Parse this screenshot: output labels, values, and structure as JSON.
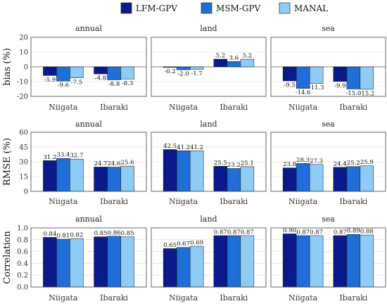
{
  "legend": [
    {
      "name": "LFM-GPV",
      "color": "#0a1a8c"
    },
    {
      "name": "MSM-GPV",
      "color": "#1f6fd6"
    },
    {
      "name": "MANAL",
      "color": "#8ecbf5"
    }
  ],
  "chart_data": [
    {
      "type": "bar",
      "metric": "bias",
      "ylabel": "bias (%)",
      "ylim": [
        -20,
        20
      ],
      "yticks": [
        -20,
        -10,
        0,
        10,
        20
      ],
      "grid": true,
      "label_decimals": 1,
      "panels": [
        {
          "title": "annual",
          "categories": [
            "Niigata",
            "Ibaraki"
          ],
          "series": [
            {
              "name": "LFM-GPV",
              "values": [
                -5.9,
                -4.8
              ]
            },
            {
              "name": "MSM-GPV",
              "values": [
                -9.6,
                -8.8
              ]
            },
            {
              "name": "MANAL",
              "values": [
                -7.5,
                -8.3
              ]
            }
          ]
        },
        {
          "title": "land",
          "categories": [
            "Niigata",
            "Ibaraki"
          ],
          "series": [
            {
              "name": "LFM-GPV",
              "values": [
                -0.2,
                5.2
              ]
            },
            {
              "name": "MSM-GPV",
              "values": [
                -2.0,
                3.6
              ]
            },
            {
              "name": "MANAL",
              "values": [
                -1.7,
                5.2
              ]
            }
          ]
        },
        {
          "title": "sea",
          "categories": [
            "Niigata",
            "Ibaraki"
          ],
          "series": [
            {
              "name": "LFM-GPV",
              "values": [
                -9.5,
                -9.9
              ]
            },
            {
              "name": "MSM-GPV",
              "values": [
                -14.6,
                -15.0
              ]
            },
            {
              "name": "MANAL",
              "values": [
                -11.3,
                -15.2
              ]
            }
          ]
        }
      ]
    },
    {
      "type": "bar",
      "metric": "RMSE",
      "ylabel": "RMSE (%)",
      "ylim": [
        0,
        60
      ],
      "yticks": [
        0,
        15,
        30,
        45,
        60
      ],
      "grid": true,
      "label_decimals": 1,
      "panels": [
        {
          "title": "annual",
          "categories": [
            "Niigata",
            "Ibaraki"
          ],
          "series": [
            {
              "name": "LFM-GPV",
              "values": [
                31.2,
                24.7
              ]
            },
            {
              "name": "MSM-GPV",
              "values": [
                33.4,
                24.6
              ]
            },
            {
              "name": "MANAL",
              "values": [
                32.7,
                25.6
              ]
            }
          ]
        },
        {
          "title": "land",
          "categories": [
            "Niigata",
            "Ibaraki"
          ],
          "series": [
            {
              "name": "LFM-GPV",
              "values": [
                42.5,
                25.5
              ]
            },
            {
              "name": "MSM-GPV",
              "values": [
                41.2,
                23.2
              ]
            },
            {
              "name": "MANAL",
              "values": [
                41.2,
                25.1
              ]
            }
          ]
        },
        {
          "title": "sea",
          "categories": [
            "Niigata",
            "Ibaraki"
          ],
          "series": [
            {
              "name": "LFM-GPV",
              "values": [
                23.8,
                24.4
              ]
            },
            {
              "name": "MSM-GPV",
              "values": [
                28.3,
                25.2
              ]
            },
            {
              "name": "MANAL",
              "values": [
                27.3,
                25.9
              ]
            }
          ]
        }
      ]
    },
    {
      "type": "bar",
      "metric": "Correlation",
      "ylabel": "Correlation",
      "ylim": [
        0,
        1.0
      ],
      "yticks": [
        0.0,
        0.2,
        0.4,
        0.6,
        0.8,
        1.0
      ],
      "grid": true,
      "label_decimals": 2,
      "panels": [
        {
          "title": "annual",
          "categories": [
            "Niigata",
            "Ibaraki"
          ],
          "series": [
            {
              "name": "LFM-GPV",
              "values": [
                0.84,
                0.85
              ]
            },
            {
              "name": "MSM-GPV",
              "values": [
                0.81,
                0.86
              ]
            },
            {
              "name": "MANAL",
              "values": [
                0.82,
                0.85
              ]
            }
          ]
        },
        {
          "title": "land",
          "categories": [
            "Niigata",
            "Ibaraki"
          ],
          "series": [
            {
              "name": "LFM-GPV",
              "values": [
                0.65,
                0.87
              ]
            },
            {
              "name": "MSM-GPV",
              "values": [
                0.67,
                0.87
              ]
            },
            {
              "name": "MANAL",
              "values": [
                0.69,
                0.87
              ]
            }
          ]
        },
        {
          "title": "sea",
          "categories": [
            "Niigata",
            "Ibaraki"
          ],
          "series": [
            {
              "name": "LFM-GPV",
              "values": [
                0.9,
                0.87
              ]
            },
            {
              "name": "MSM-GPV",
              "values": [
                0.87,
                0.89
              ]
            },
            {
              "name": "MANAL",
              "values": [
                0.87,
                0.88
              ]
            }
          ]
        }
      ]
    }
  ]
}
